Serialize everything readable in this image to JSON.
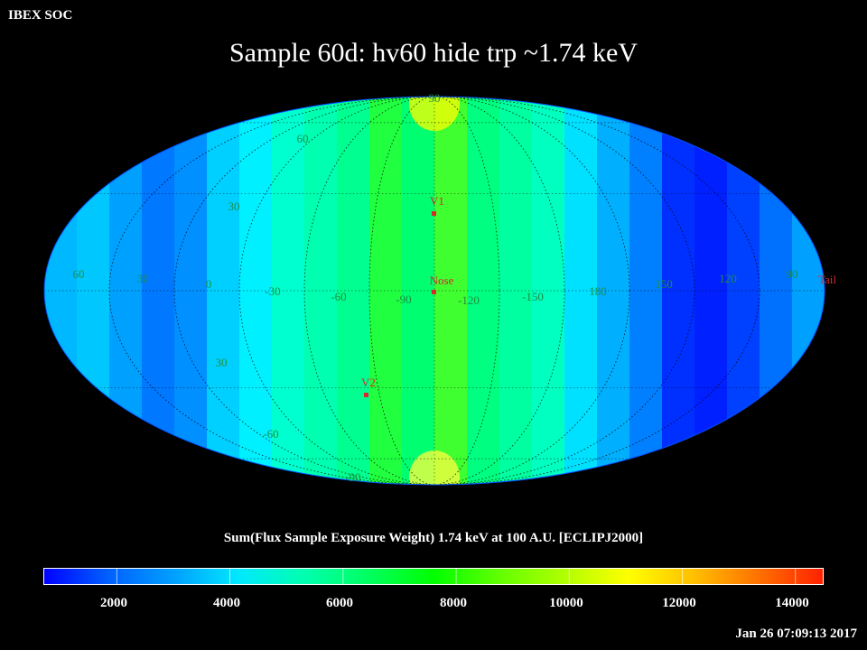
{
  "header": {
    "label": "IBEX SOC"
  },
  "title": "Sample 60d: hv60 hide trp ~1.74 keV",
  "map": {
    "lat_labels": [
      "90",
      "60",
      "30",
      "30",
      "-60",
      "-90"
    ],
    "lon_labels": [
      "60",
      "30",
      "0",
      "-30",
      "-60",
      "-90",
      "-120",
      "-150",
      "180",
      "150",
      "120",
      "90"
    ],
    "markers": [
      {
        "label": "V1",
        "color": "#d42a2a"
      },
      {
        "label": "Nose",
        "color": "#d42a2a"
      },
      {
        "label": "V2",
        "color": "#d42a2a"
      },
      {
        "label": "Tail",
        "color": "#d42a2a"
      }
    ],
    "label_color": "#1e8e3e",
    "marker_color": "#d42a2a"
  },
  "colorbar": {
    "title": "Sum(Flux Sample Exposure Weight)  1.74 keV at 100 A.U. [ECLIPJ2000]",
    "ticks": [
      "2000",
      "4000",
      "6000",
      "8000",
      "10000",
      "12000",
      "14000"
    ],
    "tick_values": [
      2000,
      4000,
      6000,
      8000,
      10000,
      12000,
      14000
    ],
    "range": [
      700,
      14500
    ],
    "colors": [
      "#0000ff",
      "#0060ff",
      "#00a0ff",
      "#00e8ff",
      "#00ffb0",
      "#00ff60",
      "#00ff00",
      "#60ff00",
      "#b0ff00",
      "#ffff00",
      "#ffc000",
      "#ff7000",
      "#ff2000"
    ]
  },
  "timestamp": "Jan 26 07:09:13 2017"
}
